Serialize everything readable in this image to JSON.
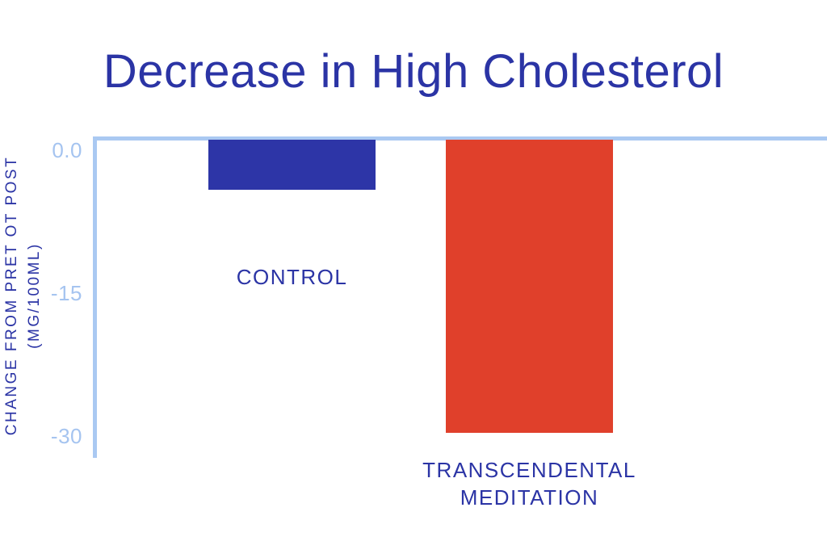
{
  "chart_data": {
    "type": "bar",
    "orientation": "vertical",
    "title": "Decrease in High Cholesterol",
    "ylabel": "CHANGE FROM PRET OT POST (MG/100ML)",
    "ylabel_lines": [
      "CHANGE FROM PRET OT POST",
      "(MG/100ML)"
    ],
    "xlabel": "",
    "categories": [
      "CONTROL",
      "TRANSCENDENTAL MEDITATION"
    ],
    "values": [
      -5,
      -29.5
    ],
    "units": "mg/100ml",
    "bar_colors": [
      "#2d35a7",
      "#e0402b"
    ],
    "yticks": [
      {
        "value": 0,
        "label": "0.0"
      },
      {
        "value": -15,
        "label": "-15"
      },
      {
        "value": -30,
        "label": "-30"
      }
    ],
    "ylim": [
      -30,
      0
    ],
    "grid": false,
    "legend": false,
    "colors": {
      "title_text": "#2b34a5",
      "category_text": "#2b34a5",
      "axis_label_text": "#2b34a5",
      "tick_text": "#a5c4f0",
      "axis_line": "#aac9f2",
      "background": "#ffffff"
    }
  }
}
